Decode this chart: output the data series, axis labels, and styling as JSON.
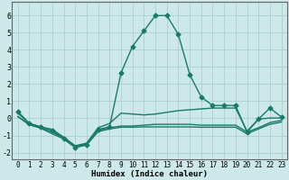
{
  "xlabel": "Humidex (Indice chaleur)",
  "xlim": [
    -0.5,
    23.5
  ],
  "ylim": [
    -2.4,
    6.8
  ],
  "xticks": [
    0,
    1,
    2,
    3,
    4,
    5,
    6,
    7,
    8,
    9,
    10,
    11,
    12,
    13,
    14,
    15,
    16,
    17,
    18,
    19,
    20,
    21,
    22,
    23
  ],
  "yticks": [
    -2,
    -1,
    0,
    1,
    2,
    3,
    4,
    5,
    6
  ],
  "bg_color": "#cce8e8",
  "grid_color": "#aad0d0",
  "line_color": "#1a7a6a",
  "lines": [
    {
      "x": [
        0,
        1,
        2,
        3,
        4,
        5,
        6,
        7,
        8,
        9,
        10,
        11,
        12,
        13,
        14,
        15,
        16,
        17,
        18,
        19,
        20,
        21,
        22,
        23
      ],
      "y": [
        0.4,
        -0.3,
        -0.5,
        -0.7,
        -1.2,
        -1.7,
        -1.55,
        -0.65,
        -0.5,
        2.65,
        4.2,
        5.1,
        6.0,
        6.0,
        4.9,
        2.55,
        1.25,
        0.75,
        0.75,
        0.75,
        -0.8,
        -0.05,
        0.6,
        0.08
      ],
      "marker": "D",
      "markersize": 2.5,
      "linewidth": 1.0
    },
    {
      "x": [
        0,
        1,
        2,
        3,
        4,
        5,
        6,
        7,
        8,
        9,
        10,
        11,
        12,
        13,
        14,
        15,
        16,
        17,
        18,
        19,
        20,
        21,
        22,
        23
      ],
      "y": [
        0.3,
        -0.3,
        -0.5,
        -0.65,
        -1.1,
        -1.6,
        -1.45,
        -0.55,
        -0.3,
        0.3,
        0.25,
        0.2,
        0.25,
        0.35,
        0.45,
        0.5,
        0.55,
        0.6,
        0.6,
        0.6,
        -0.75,
        -0.05,
        0.02,
        0.02
      ],
      "marker": null,
      "markersize": 0,
      "linewidth": 1.0
    },
    {
      "x": [
        0,
        1,
        2,
        3,
        4,
        5,
        6,
        7,
        8,
        9,
        10,
        11,
        12,
        13,
        14,
        15,
        16,
        17,
        18,
        19,
        20,
        21,
        22,
        23
      ],
      "y": [
        0.1,
        -0.35,
        -0.55,
        -0.8,
        -1.15,
        -1.65,
        -1.5,
        -0.7,
        -0.55,
        -0.45,
        -0.45,
        -0.4,
        -0.35,
        -0.35,
        -0.35,
        -0.35,
        -0.4,
        -0.4,
        -0.4,
        -0.4,
        -0.8,
        -0.55,
        -0.25,
        -0.12
      ],
      "marker": null,
      "markersize": 0,
      "linewidth": 1.0
    },
    {
      "x": [
        0,
        1,
        2,
        3,
        4,
        5,
        6,
        7,
        8,
        9,
        10,
        11,
        12,
        13,
        14,
        15,
        16,
        17,
        18,
        19,
        20,
        21,
        22,
        23
      ],
      "y": [
        0.1,
        -0.38,
        -0.58,
        -0.9,
        -1.2,
        -1.7,
        -1.55,
        -0.78,
        -0.62,
        -0.52,
        -0.52,
        -0.5,
        -0.5,
        -0.5,
        -0.5,
        -0.5,
        -0.52,
        -0.52,
        -0.52,
        -0.52,
        -0.9,
        -0.62,
        -0.35,
        -0.22
      ],
      "marker": null,
      "markersize": 0,
      "linewidth": 1.0
    }
  ]
}
